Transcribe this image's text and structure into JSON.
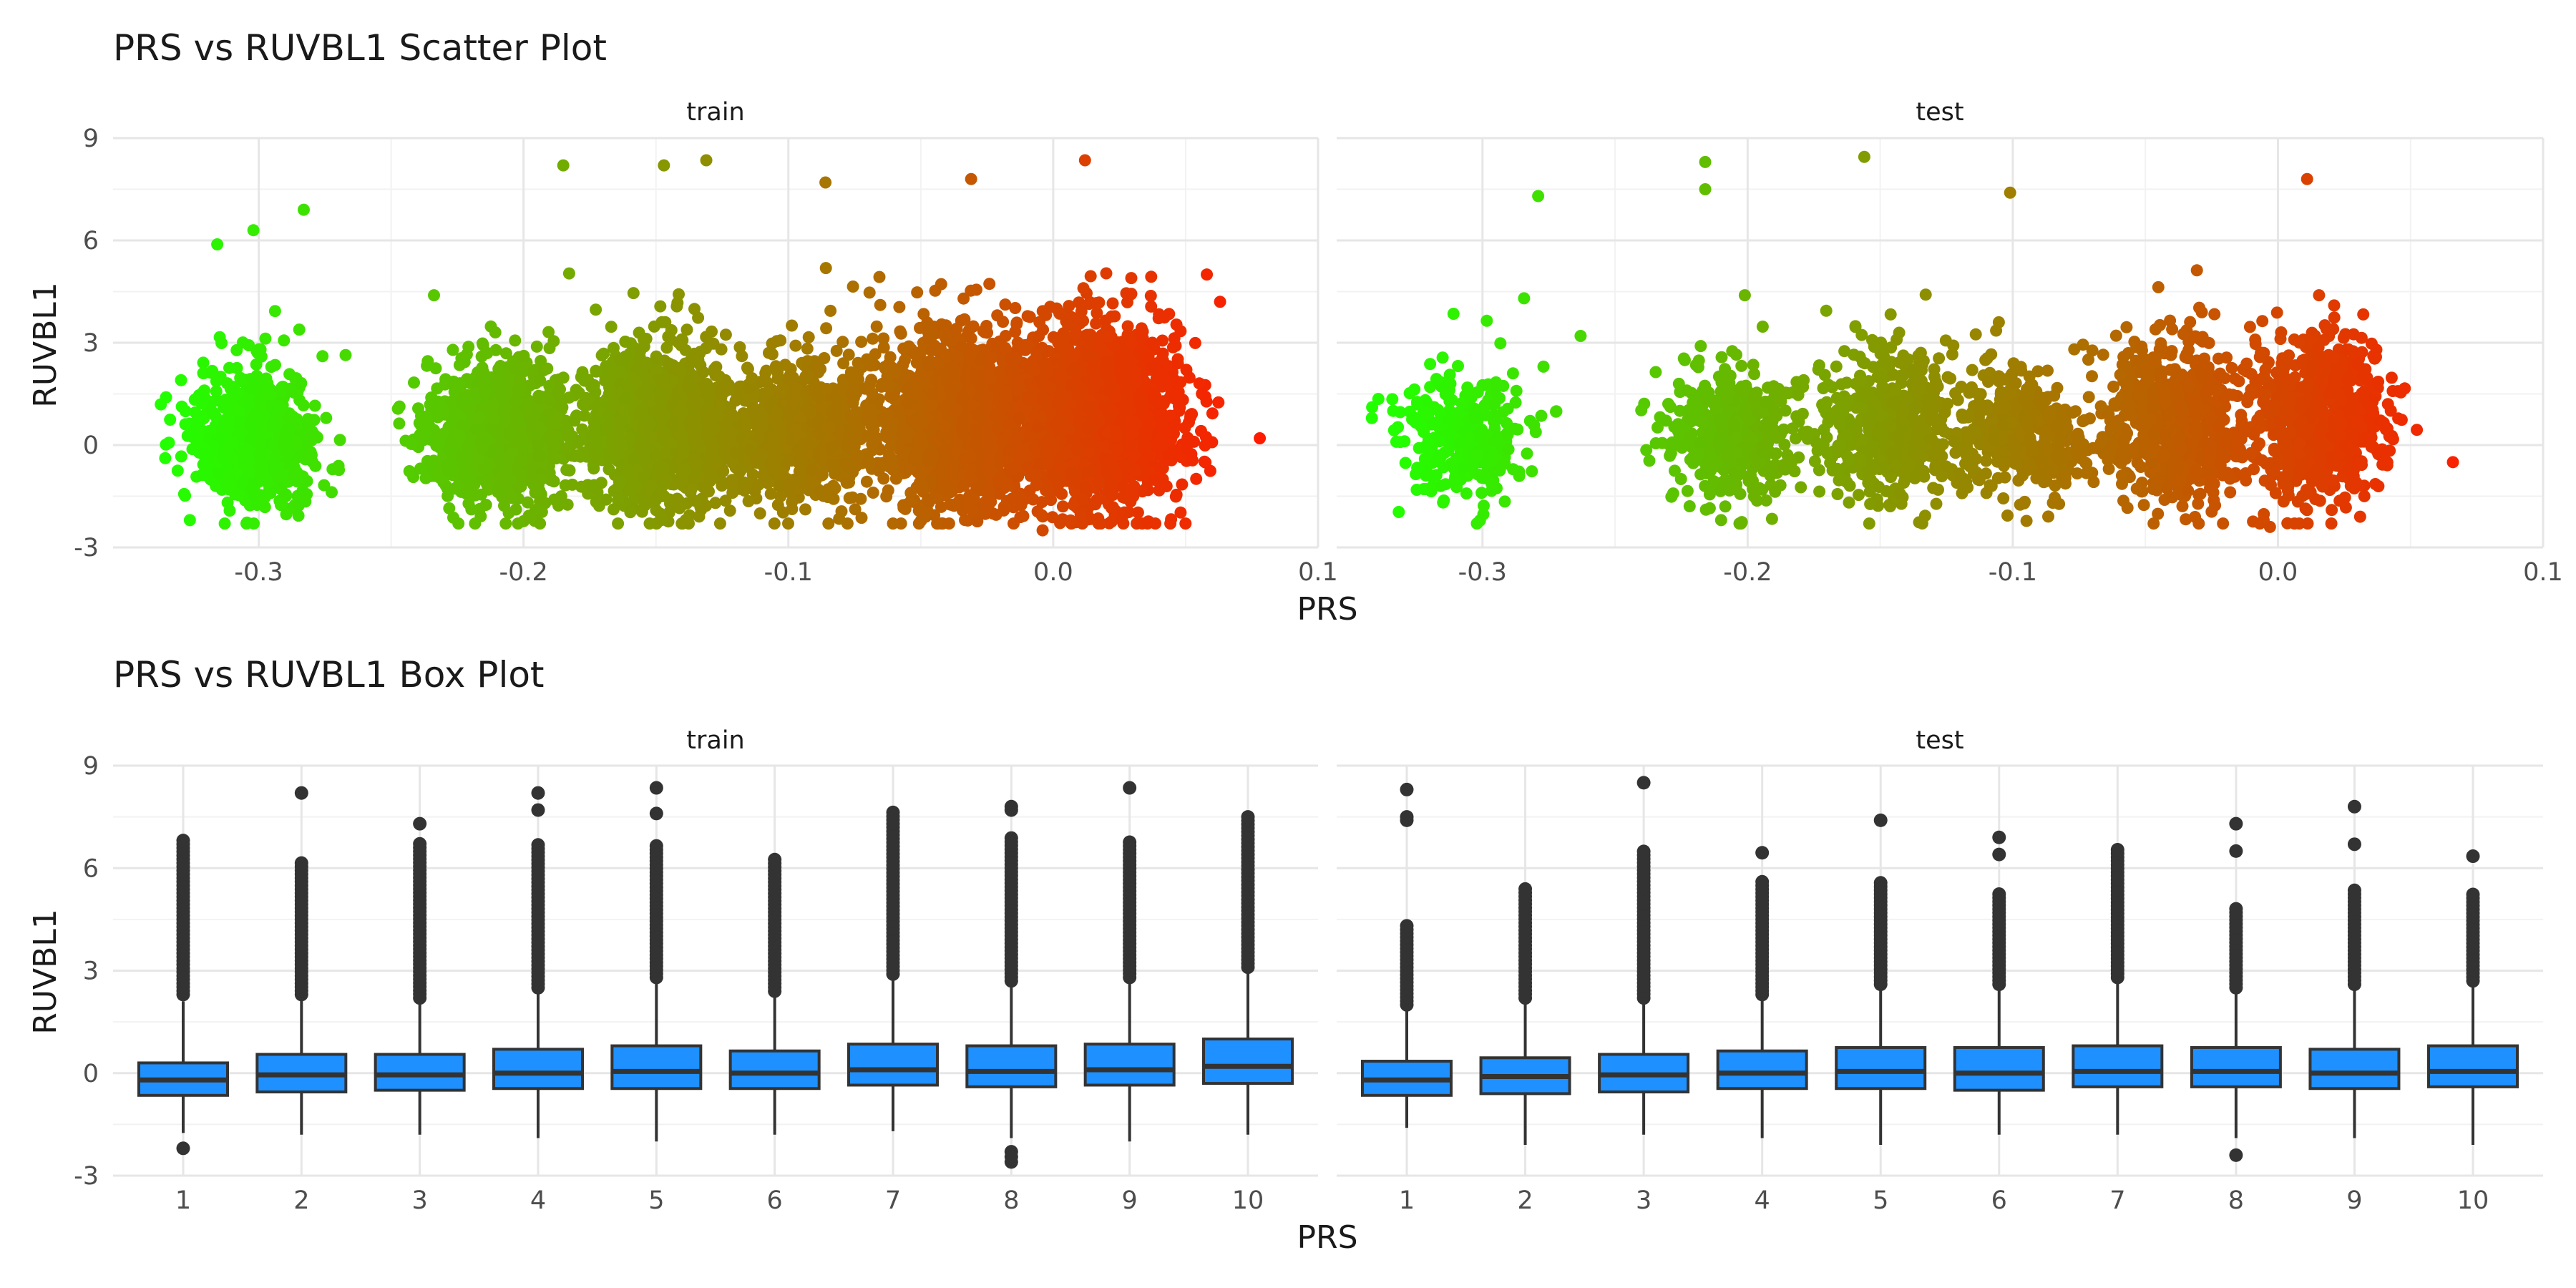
{
  "charts": {
    "scatter": {
      "type": "scatter",
      "title": "PRS vs RUVBL1 Scatter Plot",
      "xlabel": "PRS",
      "ylabel": "RUVBL1",
      "xlim": [
        -0.355,
        0.1
      ],
      "ylim": [
        -3,
        9
      ],
      "xticks": [
        -0.3,
        -0.2,
        -0.1,
        0.0,
        0.1
      ],
      "xtick_labels": [
        "-0.3",
        "-0.2",
        "-0.1",
        "0.0",
        "0.1"
      ],
      "yticks": [
        -3,
        0,
        3,
        6,
        9
      ],
      "ytick_labels": [
        "-3",
        "0",
        "3",
        "6",
        "9"
      ],
      "grid": true,
      "color_scale": {
        "low": "#22ff00",
        "high": "#ff1a00"
      },
      "panels": [
        {
          "name": "train",
          "clusters": [
            {
              "x_center": -0.302,
              "x_sd": 0.011,
              "y_mean": 0.2,
              "y_sd": 0.85,
              "n": 900
            },
            {
              "x_center": -0.21,
              "x_sd": 0.013,
              "y_mean": 0.3,
              "y_sd": 1.0,
              "n": 1100
            },
            {
              "x_center": -0.148,
              "x_sd": 0.014,
              "y_mean": 0.5,
              "y_sd": 1.1,
              "n": 1300
            },
            {
              "x_center": -0.095,
              "x_sd": 0.013,
              "y_mean": 0.4,
              "y_sd": 0.9,
              "n": 900
            },
            {
              "x_center": -0.035,
              "x_sd": 0.016,
              "y_mean": 0.7,
              "y_sd": 1.2,
              "n": 1500
            },
            {
              "x_center": 0.018,
              "x_sd": 0.015,
              "y_mean": 0.8,
              "y_sd": 1.25,
              "n": 1600
            }
          ],
          "outliers": [
            [
              -0.185,
              8.2
            ],
            [
              -0.147,
              8.2
            ],
            [
              -0.131,
              8.35
            ],
            [
              -0.086,
              7.7
            ],
            [
              -0.031,
              7.8
            ],
            [
              0.012,
              8.35
            ],
            [
              0.078,
              0.2
            ],
            [
              -0.283,
              6.9
            ],
            [
              -0.302,
              6.3
            ],
            [
              0.058,
              5.0
            ],
            [
              0.063,
              4.2
            ],
            [
              -0.335,
              1.4
            ],
            [
              -0.326,
              -2.2
            ],
            [
              -0.004,
              -2.5
            ],
            [
              0.011,
              -2.3
            ]
          ]
        },
        {
          "name": "test",
          "clusters": [
            {
              "x_center": -0.307,
              "x_sd": 0.011,
              "y_mean": 0.2,
              "y_sd": 0.9,
              "n": 320
            },
            {
              "x_center": -0.205,
              "x_sd": 0.012,
              "y_mean": 0.2,
              "y_sd": 0.95,
              "n": 450
            },
            {
              "x_center": -0.145,
              "x_sd": 0.014,
              "y_mean": 0.5,
              "y_sd": 1.1,
              "n": 550
            },
            {
              "x_center": -0.095,
              "x_sd": 0.012,
              "y_mean": 0.3,
              "y_sd": 0.9,
              "n": 380
            },
            {
              "x_center": -0.04,
              "x_sd": 0.014,
              "y_mean": 0.6,
              "y_sd": 1.15,
              "n": 600
            },
            {
              "x_center": 0.015,
              "x_sd": 0.014,
              "y_mean": 0.7,
              "y_sd": 1.2,
              "n": 650
            }
          ],
          "outliers": [
            [
              -0.216,
              8.3
            ],
            [
              -0.216,
              7.5
            ],
            [
              -0.156,
              8.45
            ],
            [
              -0.101,
              7.4
            ],
            [
              0.011,
              7.8
            ],
            [
              -0.279,
              7.3
            ],
            [
              -0.263,
              3.2
            ],
            [
              -0.277,
              2.3
            ],
            [
              0.066,
              -0.5
            ],
            [
              -0.003,
              -2.4
            ],
            [
              0.031,
              -2.1
            ],
            [
              -0.21,
              -2.2
            ]
          ]
        }
      ]
    },
    "box": {
      "type": "box",
      "title": "PRS vs RUVBL1 Box Plot",
      "xlabel": "PRS",
      "ylabel": "RUVBL1",
      "ylim": [
        -3,
        9
      ],
      "yticks": [
        -3,
        0,
        3,
        6,
        9
      ],
      "ytick_labels": [
        "-3",
        "0",
        "3",
        "6",
        "9"
      ],
      "categories": [
        "1",
        "2",
        "3",
        "4",
        "5",
        "6",
        "7",
        "8",
        "9",
        "10"
      ],
      "fill": "#1e90ff",
      "grid": true,
      "panels": [
        {
          "name": "train",
          "boxes": [
            {
              "q1": -0.65,
              "median": -0.2,
              "q3": 0.3,
              "lo": -1.75,
              "hi": 2.1,
              "out_top": 6.9,
              "out_start": 2.3,
              "out_bottom": [
                -2.2
              ]
            },
            {
              "q1": -0.55,
              "median": -0.05,
              "q3": 0.55,
              "lo": -1.8,
              "hi": 2.2,
              "out_top": 6.2,
              "out_start": 2.3,
              "out_bottom": [],
              "extra_high": [
                8.2
              ]
            },
            {
              "q1": -0.5,
              "median": -0.05,
              "q3": 0.55,
              "lo": -1.8,
              "hi": 2.1,
              "out_top": 6.8,
              "out_start": 2.2,
              "out_bottom": [],
              "extra_high": [
                7.3
              ]
            },
            {
              "q1": -0.45,
              "median": 0.0,
              "q3": 0.7,
              "lo": -1.9,
              "hi": 2.4,
              "out_top": 6.7,
              "out_start": 2.5,
              "out_bottom": [],
              "extra_high": [
                7.7,
                8.2
              ]
            },
            {
              "q1": -0.45,
              "median": 0.05,
              "q3": 0.8,
              "lo": -2.0,
              "hi": 2.7,
              "out_top": 6.7,
              "out_start": 2.8,
              "out_bottom": [],
              "extra_high": [
                7.6,
                8.35
              ]
            },
            {
              "q1": -0.45,
              "median": 0.0,
              "q3": 0.65,
              "lo": -1.8,
              "hi": 2.3,
              "out_top": 6.3,
              "out_start": 2.4,
              "out_bottom": []
            },
            {
              "q1": -0.35,
              "median": 0.1,
              "q3": 0.85,
              "lo": -1.7,
              "hi": 2.8,
              "out_top": 7.7,
              "out_start": 2.9,
              "out_bottom": []
            },
            {
              "q1": -0.4,
              "median": 0.05,
              "q3": 0.8,
              "lo": -1.9,
              "hi": 2.6,
              "out_top": 6.9,
              "out_start": 2.7,
              "out_bottom": [
                -2.3,
                -2.45,
                -2.6
              ],
              "extra_high": [
                7.7,
                7.8
              ]
            },
            {
              "q1": -0.35,
              "median": 0.1,
              "q3": 0.85,
              "lo": -2.0,
              "hi": 2.7,
              "out_top": 6.8,
              "out_start": 2.8,
              "out_bottom": [],
              "extra_high": [
                8.35
              ]
            },
            {
              "q1": -0.3,
              "median": 0.2,
              "q3": 1.0,
              "lo": -1.8,
              "hi": 3.0,
              "out_top": 7.5,
              "out_start": 3.1,
              "out_bottom": []
            }
          ]
        },
        {
          "name": "test",
          "boxes": [
            {
              "q1": -0.65,
              "median": -0.2,
              "q3": 0.35,
              "lo": -1.6,
              "hi": 1.9,
              "out_top": 4.4,
              "out_start": 2.0,
              "out_bottom": [],
              "extra_high": [
                7.4,
                7.5,
                8.3
              ]
            },
            {
              "q1": -0.6,
              "median": -0.1,
              "q3": 0.45,
              "lo": -2.1,
              "hi": 2.1,
              "out_top": 5.4,
              "out_start": 2.2,
              "out_bottom": []
            },
            {
              "q1": -0.55,
              "median": -0.05,
              "q3": 0.55,
              "lo": -1.8,
              "hi": 2.1,
              "out_top": 6.5,
              "out_start": 2.2,
              "out_bottom": [],
              "extra_high": [
                8.5
              ]
            },
            {
              "q1": -0.45,
              "median": 0.0,
              "q3": 0.65,
              "lo": -1.9,
              "hi": 2.2,
              "out_top": 5.7,
              "out_start": 2.3,
              "out_bottom": [],
              "extra_high": [
                6.45
              ]
            },
            {
              "q1": -0.45,
              "median": 0.05,
              "q3": 0.75,
              "lo": -2.1,
              "hi": 2.5,
              "out_top": 5.6,
              "out_start": 2.6,
              "out_bottom": [],
              "extra_high": [
                7.4
              ]
            },
            {
              "q1": -0.5,
              "median": 0.0,
              "q3": 0.75,
              "lo": -1.8,
              "hi": 2.5,
              "out_top": 5.3,
              "out_start": 2.6,
              "out_bottom": [],
              "extra_high": [
                6.4,
                6.9
              ]
            },
            {
              "q1": -0.4,
              "median": 0.05,
              "q3": 0.8,
              "lo": -1.8,
              "hi": 2.7,
              "out_top": 6.6,
              "out_start": 2.8,
              "out_bottom": []
            },
            {
              "q1": -0.4,
              "median": 0.05,
              "q3": 0.75,
              "lo": -1.9,
              "hi": 2.4,
              "out_top": 4.9,
              "out_start": 2.5,
              "out_bottom": [
                -2.4
              ],
              "extra_high": [
                6.5,
                7.3
              ]
            },
            {
              "q1": -0.45,
              "median": 0.0,
              "q3": 0.7,
              "lo": -1.9,
              "hi": 2.5,
              "out_top": 5.4,
              "out_start": 2.6,
              "out_bottom": [],
              "extra_high": [
                6.7,
                7.8
              ]
            },
            {
              "q1": -0.4,
              "median": 0.05,
              "q3": 0.8,
              "lo": -2.1,
              "hi": 2.6,
              "out_top": 5.3,
              "out_start": 2.7,
              "out_bottom": [],
              "extra_high": [
                6.35
              ]
            }
          ]
        }
      ]
    }
  }
}
